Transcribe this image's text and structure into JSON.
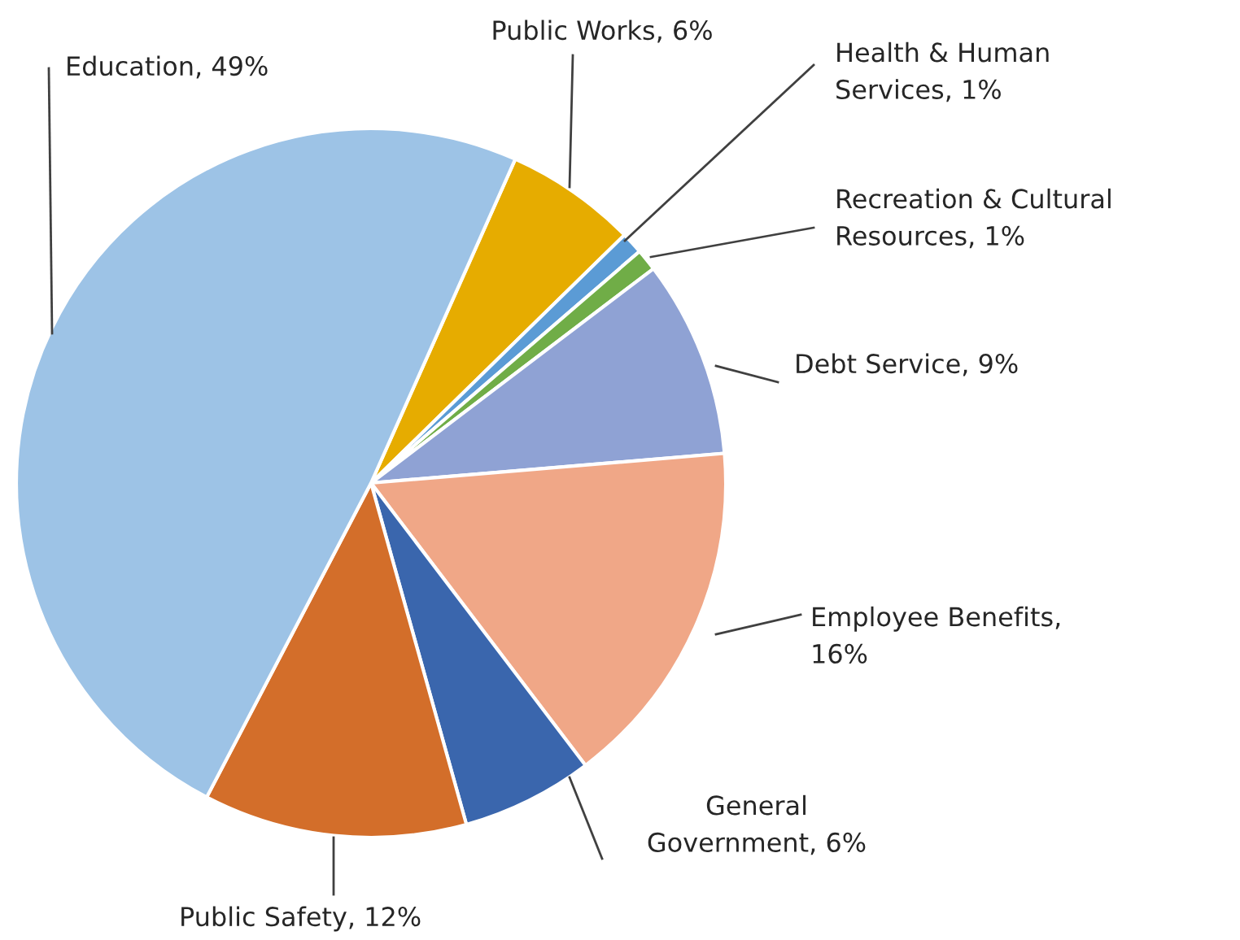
{
  "chart_data": {
    "type": "pie",
    "categories": [
      "Public Works, 6%",
      "Health & Human\nServices, 1%",
      "Recreation & Cultural\nResources, 1%",
      "Debt Service, 9%",
      "Employee Benefits,\n16%",
      "General\nGovernment, 6%",
      "Public Safety, 12%",
      "Education, 49%"
    ],
    "values": [
      6,
      1,
      1,
      9,
      16,
      6,
      12,
      49
    ],
    "colors": [
      "#e6ac00",
      "#5b9bd5",
      "#70ad47",
      "#8fa2d4",
      "#f0a787",
      "#3a66ad",
      "#d36e2a",
      "#9dc3e6"
    ]
  }
}
